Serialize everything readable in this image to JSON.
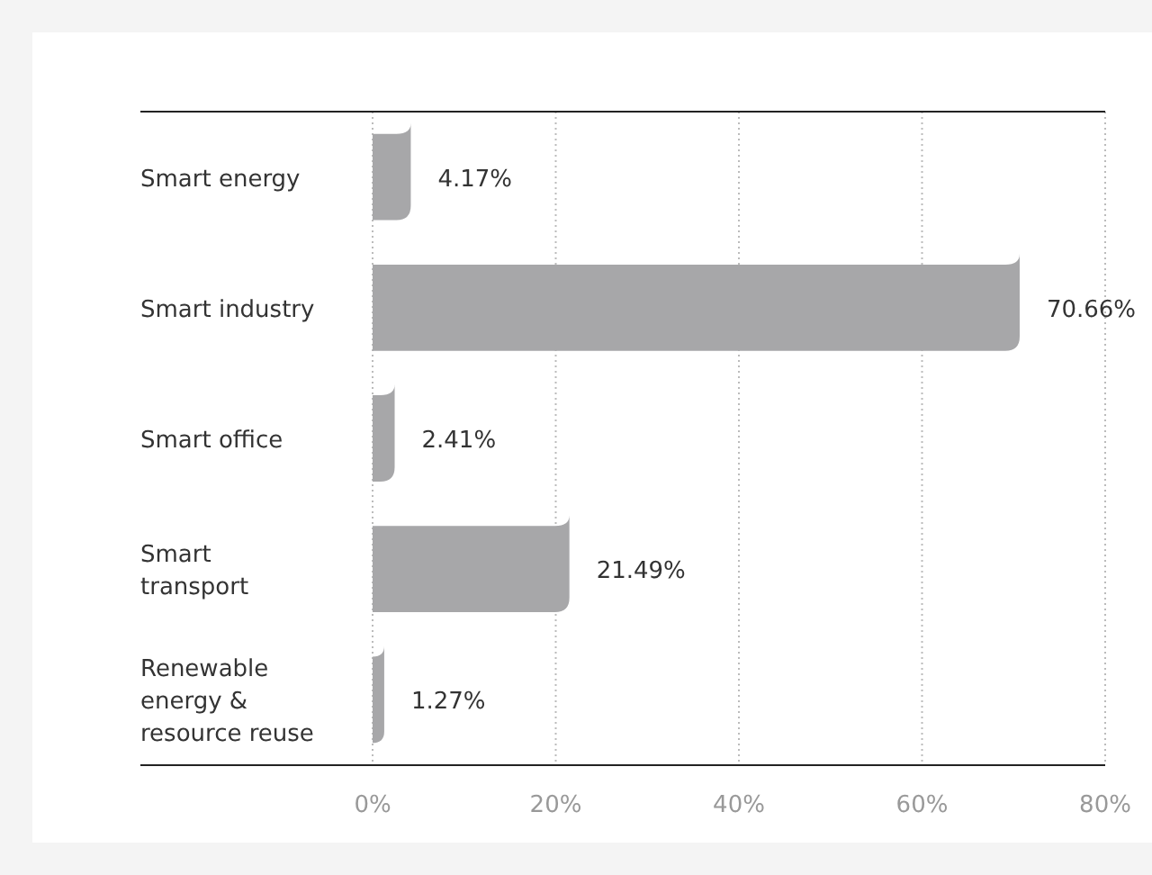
{
  "chart_data": {
    "type": "bar",
    "orientation": "horizontal",
    "categories": [
      "Smart energy",
      "Smart industry",
      "Smart office",
      "Smart transport",
      "Renewable energy & resource reuse"
    ],
    "values": [
      4.17,
      70.66,
      2.41,
      21.49,
      1.27
    ],
    "value_labels": [
      "4.17%",
      "70.66%",
      "2.41%",
      "21.49%",
      "1.27%"
    ],
    "color": "#a7a7a9",
    "xlim": [
      0,
      80
    ],
    "xticks": [
      {
        "value": 0,
        "label": "0%"
      },
      {
        "value": 20,
        "label": "20%"
      },
      {
        "value": 40,
        "label": "40%"
      },
      {
        "value": 60,
        "label": "60%"
      },
      {
        "value": 80,
        "label": "80%"
      }
    ],
    "grid": "x"
  }
}
